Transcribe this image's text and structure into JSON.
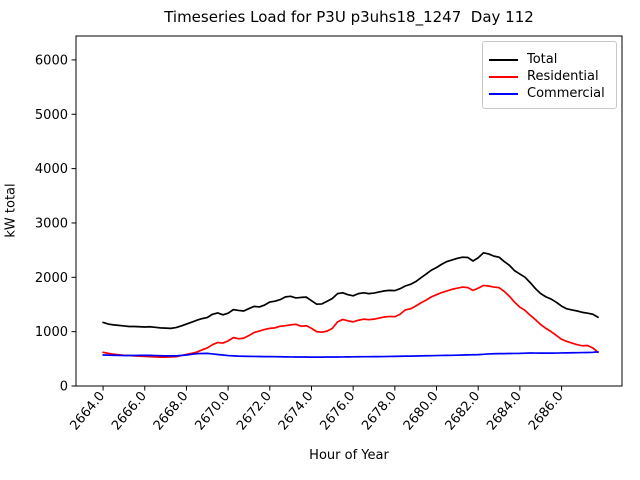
{
  "figure": {
    "title": "Timeseries Load for P3U p3uhs18_1247  Day 112",
    "x_axis_label": "Hour of Year",
    "y_axis_label": "kW total"
  },
  "legend": {
    "position": "upper right",
    "entries": [
      {
        "label": "Total",
        "color": "#000000"
      },
      {
        "label": "Residential",
        "color": "#ff0000"
      },
      {
        "label": "Commercial",
        "color": "#0000ff"
      }
    ]
  },
  "chart_data": {
    "type": "line",
    "title": "Timeseries Load for P3U p3uhs18_1247  Day 112",
    "xlabel": "Hour of Year",
    "ylabel": "kW total",
    "xlim": [
      2662.7,
      2688.9
    ],
    "ylim": [
      0,
      6440
    ],
    "grid": false,
    "legend_position": "upper right",
    "x_tick_labels": [
      "2664.0",
      "2666.0",
      "2668.0",
      "2670.0",
      "2672.0",
      "2674.0",
      "2676.0",
      "2678.0",
      "2680.0",
      "2682.0",
      "2684.0",
      "2686.0"
    ],
    "x_tick_values": [
      2664,
      2666,
      2668,
      2670,
      2672,
      2674,
      2676,
      2678,
      2680,
      2682,
      2684,
      2686
    ],
    "y_tick_labels": [
      "0",
      "1000",
      "2000",
      "3000",
      "4000",
      "5000",
      "6000"
    ],
    "y_tick_values": [
      0,
      1000,
      2000,
      3000,
      4000,
      5000,
      6000
    ],
    "x_start": 2664.0,
    "x_step": 0.25,
    "x": [
      2664.0,
      2664.25,
      2664.5,
      2664.75,
      2665.0,
      2665.25,
      2665.5,
      2665.75,
      2666.0,
      2666.25,
      2666.5,
      2666.75,
      2667.0,
      2667.25,
      2667.5,
      2667.75,
      2668.0,
      2668.25,
      2668.5,
      2668.75,
      2669.0,
      2669.25,
      2669.5,
      2669.75,
      2670.0,
      2670.25,
      2670.5,
      2670.75,
      2671.0,
      2671.25,
      2671.5,
      2671.75,
      2672.0,
      2672.25,
      2672.5,
      2672.75,
      2673.0,
      2673.25,
      2673.5,
      2673.75,
      2674.0,
      2674.25,
      2674.5,
      2674.75,
      2675.0,
      2675.25,
      2675.5,
      2675.75,
      2676.0,
      2676.25,
      2676.5,
      2676.75,
      2677.0,
      2677.25,
      2677.5,
      2677.75,
      2678.0,
      2678.25,
      2678.5,
      2678.75,
      2679.0,
      2679.25,
      2679.5,
      2679.75,
      2680.0,
      2680.25,
      2680.5,
      2680.75,
      2681.0,
      2681.25,
      2681.5,
      2681.75,
      2682.0,
      2682.25,
      2682.5,
      2682.75,
      2683.0,
      2683.25,
      2683.5,
      2683.75,
      2684.0,
      2684.25,
      2684.5,
      2684.75,
      2685.0,
      2685.25,
      2685.5,
      2685.75,
      2686.0,
      2686.25,
      2686.5,
      2686.75,
      2687.0,
      2687.25,
      2687.5,
      2687.75
    ],
    "series": [
      {
        "name": "Total",
        "color": "#000000",
        "values": [
          1170,
          1140,
          1125,
          1115,
          1105,
          1095,
          1095,
          1090,
          1085,
          1090,
          1080,
          1070,
          1065,
          1060,
          1075,
          1105,
          1140,
          1175,
          1210,
          1240,
          1260,
          1320,
          1345,
          1310,
          1340,
          1405,
          1390,
          1380,
          1425,
          1465,
          1455,
          1490,
          1545,
          1560,
          1590,
          1640,
          1650,
          1620,
          1630,
          1635,
          1570,
          1505,
          1510,
          1560,
          1610,
          1700,
          1715,
          1680,
          1660,
          1700,
          1715,
          1700,
          1710,
          1730,
          1750,
          1760,
          1755,
          1790,
          1840,
          1870,
          1920,
          1990,
          2060,
          2130,
          2180,
          2240,
          2290,
          2320,
          2350,
          2370,
          2365,
          2300,
          2360,
          2450,
          2430,
          2390,
          2370,
          2290,
          2220,
          2120,
          2060,
          2000,
          1900,
          1790,
          1700,
          1640,
          1600,
          1540,
          1470,
          1420,
          1400,
          1380,
          1355,
          1340,
          1320,
          1265
        ]
      },
      {
        "name": "Residential",
        "color": "#ff0000",
        "values": [
          620,
          600,
          585,
          575,
          565,
          560,
          555,
          550,
          545,
          540,
          535,
          530,
          530,
          535,
          540,
          560,
          580,
          600,
          625,
          665,
          700,
          760,
          800,
          790,
          830,
          890,
          870,
          880,
          930,
          985,
          1010,
          1040,
          1060,
          1070,
          1100,
          1110,
          1125,
          1135,
          1100,
          1110,
          1060,
          1000,
          990,
          1010,
          1060,
          1180,
          1225,
          1200,
          1180,
          1210,
          1230,
          1220,
          1230,
          1250,
          1270,
          1280,
          1275,
          1320,
          1400,
          1420,
          1470,
          1530,
          1580,
          1640,
          1680,
          1720,
          1750,
          1780,
          1800,
          1820,
          1810,
          1760,
          1800,
          1850,
          1840,
          1820,
          1810,
          1740,
          1650,
          1540,
          1450,
          1390,
          1300,
          1220,
          1130,
          1060,
          1000,
          930,
          860,
          820,
          790,
          760,
          740,
          745,
          700,
          620
        ]
      },
      {
        "name": "Commercial",
        "color": "#0000ff",
        "values": [
          570,
          568,
          566,
          563,
          560,
          561,
          562,
          563,
          565,
          563,
          560,
          558,
          555,
          555,
          555,
          562,
          570,
          583,
          595,
          598,
          600,
          590,
          580,
          570,
          560,
          555,
          550,
          548,
          545,
          544,
          543,
          541,
          540,
          539,
          538,
          536,
          535,
          534,
          533,
          533,
          532,
          532,
          532,
          533,
          533,
          534,
          535,
          536,
          537,
          538,
          539,
          539,
          540,
          541,
          542,
          544,
          545,
          547,
          549,
          550,
          552,
          554,
          556,
          558,
          560,
          562,
          563,
          565,
          567,
          570,
          572,
          575,
          577,
          583,
          590,
          593,
          595,
          596,
          598,
          599,
          600,
          604,
          607,
          606,
          605,
          605,
          605,
          606,
          608,
          610,
          612,
          613,
          615,
          617,
          620,
          628
        ]
      }
    ]
  }
}
